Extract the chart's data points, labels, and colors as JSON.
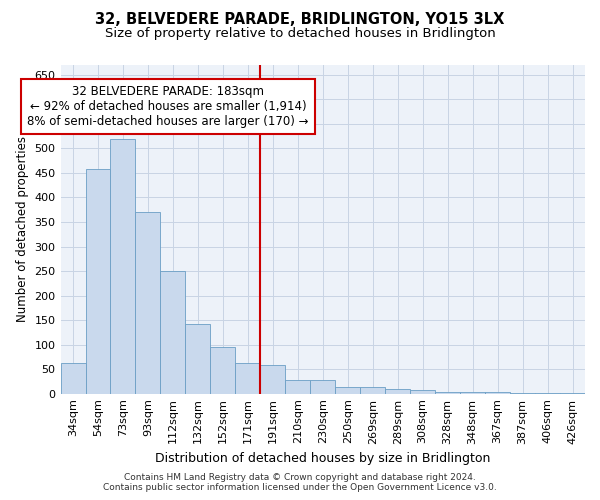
{
  "title": "32, BELVEDERE PARADE, BRIDLINGTON, YO15 3LX",
  "subtitle": "Size of property relative to detached houses in Bridlington",
  "xlabel": "Distribution of detached houses by size in Bridlington",
  "ylabel": "Number of detached properties",
  "categories": [
    "34sqm",
    "54sqm",
    "73sqm",
    "93sqm",
    "112sqm",
    "132sqm",
    "152sqm",
    "171sqm",
    "191sqm",
    "210sqm",
    "230sqm",
    "250sqm",
    "269sqm",
    "289sqm",
    "308sqm",
    "328sqm",
    "348sqm",
    "367sqm",
    "387sqm",
    "406sqm",
    "426sqm"
  ],
  "values": [
    62,
    457,
    520,
    370,
    250,
    143,
    95,
    62,
    59,
    27,
    27,
    13,
    13,
    10,
    8,
    4,
    4,
    3,
    2,
    2,
    1
  ],
  "bar_color": "#c9d9ed",
  "bar_edge_color": "#6a9ec5",
  "grid_color": "#c8d4e4",
  "background_color": "#edf2f9",
  "vline_x_index": 8,
  "vline_color": "#cc0000",
  "annotation_text": "32 BELVEDERE PARADE: 183sqm\n← 92% of detached houses are smaller (1,914)\n8% of semi-detached houses are larger (170) →",
  "annotation_box_color": "#cc0000",
  "ylim": [
    0,
    670
  ],
  "yticks": [
    0,
    50,
    100,
    150,
    200,
    250,
    300,
    350,
    400,
    450,
    500,
    550,
    600,
    650
  ],
  "footer": "Contains HM Land Registry data © Crown copyright and database right 2024.\nContains public sector information licensed under the Open Government Licence v3.0.",
  "title_fontsize": 10.5,
  "subtitle_fontsize": 9.5,
  "xlabel_fontsize": 9,
  "ylabel_fontsize": 8.5,
  "tick_fontsize": 8,
  "annotation_fontsize": 8.5,
  "footer_fontsize": 6.5
}
